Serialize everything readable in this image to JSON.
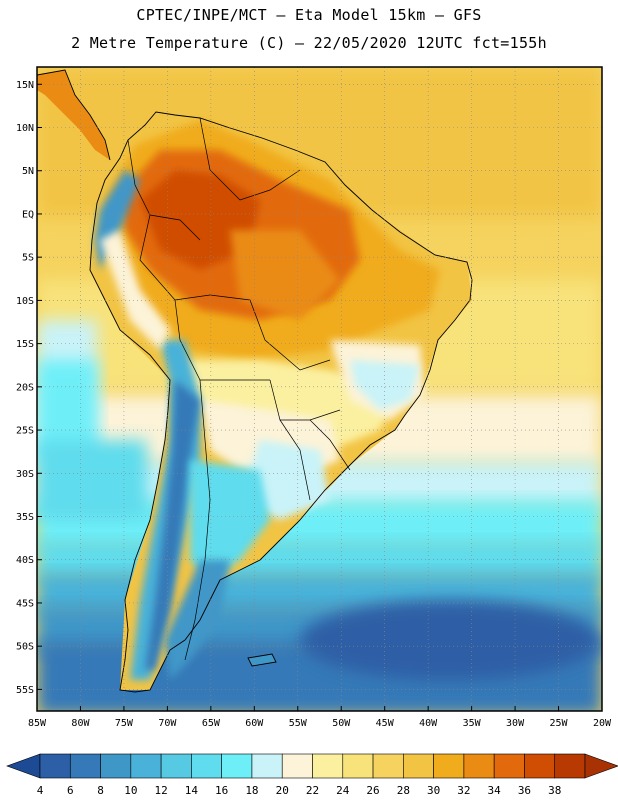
{
  "header": {
    "title_line1": "CPTEC/INPE/MCT –  Eta Model 15km – GFS",
    "title_line2": "2 Metre Temperature (C) – 22/05/2020 12UTC fct=155h"
  },
  "map": {
    "lat_labels": [
      "15N",
      "10N",
      "5N",
      "EQ",
      "5S",
      "10S",
      "15S",
      "20S",
      "25S",
      "30S",
      "35S",
      "40S",
      "45S",
      "50S",
      "55S"
    ],
    "lat_values": [
      15,
      10,
      5,
      0,
      -5,
      -10,
      -15,
      -20,
      -25,
      -30,
      -35,
      -40,
      -45,
      -50,
      -55
    ],
    "lon_labels": [
      "85W",
      "80W",
      "75W",
      "70W",
      "65W",
      "60W",
      "55W",
      "50W",
      "45W",
      "40W",
      "35W",
      "30W",
      "25W",
      "20W"
    ],
    "lon_values": [
      -85,
      -80,
      -75,
      -70,
      -65,
      -60,
      -55,
      -50,
      -45,
      -40,
      -35,
      -30,
      -25,
      -20
    ],
    "lat_range": [
      -57.5,
      17
    ],
    "lon_range": [
      -85,
      -20
    ],
    "grid": "dotted"
  },
  "colorbar": {
    "labels": [
      "4",
      "6",
      "8",
      "10",
      "12",
      "14",
      "16",
      "18",
      "20",
      "22",
      "24",
      "26",
      "28",
      "30",
      "32",
      "34",
      "36",
      "38"
    ],
    "colors": [
      "#2d5fa6",
      "#3579b8",
      "#3f97c8",
      "#4ab2d8",
      "#56c9e3",
      "#5fdced",
      "#6eeff8",
      "#c9f3f8",
      "#fcf3d8",
      "#fbf0a0",
      "#f8e27a",
      "#f5d35e",
      "#f2c444",
      "#f0ac1c",
      "#ea8b14",
      "#e26a0c",
      "#d04e04",
      "#b83a02"
    ],
    "low_color": "#1c4a94",
    "high_color": "#a83204"
  }
}
